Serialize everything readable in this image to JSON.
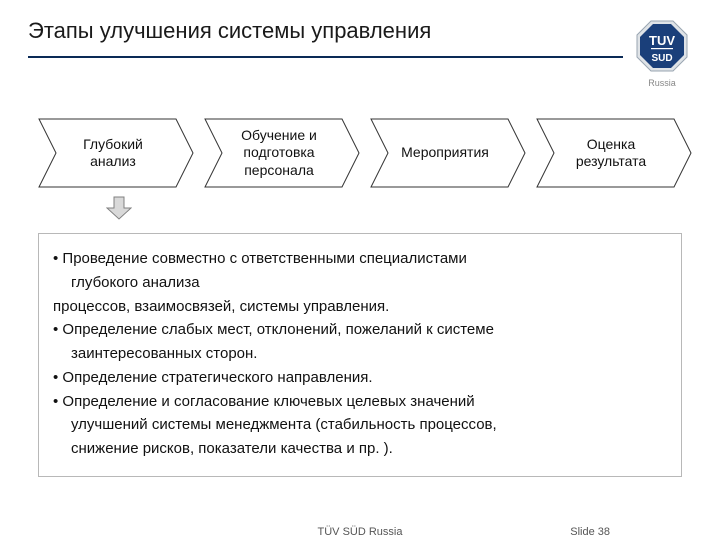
{
  "title": "Этапы улучшения системы управления",
  "logo": {
    "octagon_fill": "#1a3f7a",
    "octagon_stroke": "#9aa6b2",
    "text": "TUV",
    "subtext": "SUD",
    "text_color": "#ffffff",
    "caption": "Russia"
  },
  "hr_color": "#0a2a56",
  "flow": {
    "steps": [
      {
        "label": "Глубокий\nанализ"
      },
      {
        "label": "Обучение и\nподготовка\nперсонала"
      },
      {
        "label": "Мероприятия"
      },
      {
        "label": "Оценка\nрезультата"
      }
    ],
    "step_fill": "#ffffff",
    "step_stroke": "#333333",
    "step_stroke_width": 1,
    "font_size": 14
  },
  "down_arrow": {
    "fill": "#d9d9d9",
    "stroke": "#808080"
  },
  "details": {
    "border_color": "#b8b8b8",
    "font_size": 15,
    "lines": [
      {
        "text": "• Проведение совместно с ответственными специалистами",
        "indent": false
      },
      {
        "text": "глубокого анализа",
        "indent": true
      },
      {
        "text": "процессов, взаимосвязей, системы управления.",
        "indent": false
      },
      {
        "text": "• Определение слабых  мест, отклонений, пожеланий к системе",
        "indent": false
      },
      {
        "text": "заинтересованных сторон.",
        "indent": true
      },
      {
        "text": "• Определение стратегического направления.",
        "indent": false
      },
      {
        "text": "• Определение и согласование ключевых целевых значений",
        "indent": false
      },
      {
        "text": "улучшений системы менеджмента (стабильность процессов,",
        "indent": true
      },
      {
        "text": "снижение рисков,  показатели качества и пр. ).",
        "indent": true
      }
    ]
  },
  "footer": {
    "center": "TÜV SÜD Russia",
    "right": "Slide 38"
  }
}
